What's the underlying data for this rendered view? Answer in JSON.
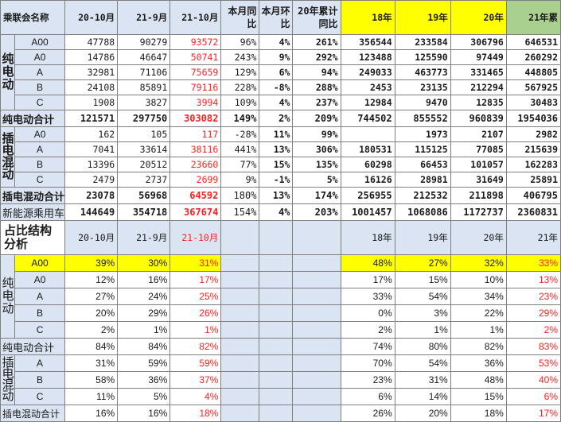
{
  "colors": {
    "yellow": "#ffff00",
    "green": "#a9d08e",
    "red": "#ff2020",
    "blue_bg": "#dbe4f2"
  },
  "header": {
    "name_label": "乘联会名称",
    "c1": "20-10月",
    "c2": "21-9月",
    "c3": "21-10月",
    "c4": "本月同比",
    "c5": "本月环比",
    "c6": "20年累计同比",
    "c7": "18年",
    "c8": "19年",
    "c9": "20年",
    "c10": "21年累"
  },
  "groups": {
    "bev": "纯电动",
    "phev": "插电混动"
  },
  "rows": [
    {
      "cat": "A00",
      "v": [
        "47788",
        "90279",
        "93572",
        "96%",
        "4%",
        "261%",
        "356544",
        "233584",
        "306796",
        "646531"
      ]
    },
    {
      "cat": "A0",
      "v": [
        "14786",
        "46647",
        "50741",
        "243%",
        "9%",
        "292%",
        "123488",
        "125590",
        "97449",
        "260292"
      ]
    },
    {
      "cat": "A",
      "v": [
        "32981",
        "71106",
        "75659",
        "129%",
        "6%",
        "94%",
        "249033",
        "463773",
        "331465",
        "448805"
      ]
    },
    {
      "cat": "B",
      "v": [
        "24108",
        "85891",
        "79116",
        "228%",
        "-8%",
        "288%",
        "2453",
        "23135",
        "212294",
        "567925"
      ]
    },
    {
      "cat": "C",
      "v": [
        "1908",
        "3827",
        "3994",
        "109%",
        "4%",
        "237%",
        "12984",
        "9470",
        "12835",
        "30483"
      ]
    },
    {
      "cat": "纯电动合计",
      "v": [
        "121571",
        "297750",
        "303082",
        "149%",
        "2%",
        "209%",
        "744502",
        "855552",
        "960839",
        "1954036"
      ]
    },
    {
      "cat": "A0",
      "v": [
        "162",
        "105",
        "117",
        "-28%",
        "11%",
        "99%",
        "",
        "1973",
        "2107",
        "2982"
      ]
    },
    {
      "cat": "A",
      "v": [
        "7041",
        "33614",
        "38116",
        "441%",
        "13%",
        "306%",
        "180531",
        "115125",
        "77085",
        "215639"
      ]
    },
    {
      "cat": "B",
      "v": [
        "13396",
        "20512",
        "23660",
        "77%",
        "15%",
        "135%",
        "60298",
        "66453",
        "101057",
        "162283"
      ]
    },
    {
      "cat": "C",
      "v": [
        "2479",
        "2737",
        "2699",
        "9%",
        "-1%",
        "5%",
        "16126",
        "28981",
        "31649",
        "25891"
      ]
    },
    {
      "cat": "插电混动合计",
      "v": [
        "23078",
        "56968",
        "64592",
        "180%",
        "13%",
        "174%",
        "256955",
        "212532",
        "211898",
        "406795"
      ]
    },
    {
      "cat": "新能源乘用车",
      "v": [
        "144649",
        "354718",
        "367674",
        "154%",
        "4%",
        "203%",
        "1001457",
        "1068086",
        "1172737",
        "2360831"
      ]
    }
  ],
  "share_header": {
    "title": "占比结构分析",
    "c1": "20-10月",
    "c2": "21-9月",
    "c3": "21-10月",
    "c7": "18年",
    "c8": "19年",
    "c9": "20年",
    "c10": "21年"
  },
  "share_rows": [
    {
      "cat": "A00",
      "v": [
        "39%",
        "30%",
        "31%",
        "48%",
        "27%",
        "32%",
        "33%"
      ]
    },
    {
      "cat": "A0",
      "v": [
        "12%",
        "16%",
        "17%",
        "17%",
        "15%",
        "10%",
        "13%"
      ]
    },
    {
      "cat": "A",
      "v": [
        "27%",
        "24%",
        "25%",
        "33%",
        "54%",
        "34%",
        "23%"
      ]
    },
    {
      "cat": "B",
      "v": [
        "20%",
        "29%",
        "26%",
        "0%",
        "3%",
        "22%",
        "29%"
      ]
    },
    {
      "cat": "C",
      "v": [
        "2%",
        "1%",
        "1%",
        "2%",
        "1%",
        "1%",
        "2%"
      ]
    },
    {
      "cat": "纯电动合计",
      "v": [
        "84%",
        "84%",
        "82%",
        "74%",
        "80%",
        "82%",
        "83%"
      ]
    },
    {
      "cat": "A",
      "v": [
        "31%",
        "59%",
        "59%",
        "70%",
        "54%",
        "36%",
        "53%"
      ]
    },
    {
      "cat": "B",
      "v": [
        "58%",
        "36%",
        "37%",
        "23%",
        "31%",
        "48%",
        "40%"
      ]
    },
    {
      "cat": "C",
      "v": [
        "11%",
        "5%",
        "4%",
        "6%",
        "14%",
        "15%",
        "6%"
      ]
    },
    {
      "cat": "插电混动合计",
      "v": [
        "16%",
        "16%",
        "18%",
        "26%",
        "20%",
        "18%",
        "17%"
      ]
    }
  ],
  "chart_data": {
    "type": "table",
    "columns": [
      "20-10月",
      "21-9月",
      "21-10月",
      "本月同比",
      "本月环比",
      "20年累计同比",
      "18年",
      "19年",
      "20年",
      "21年累"
    ],
    "series": [
      {
        "name": "A00",
        "values": [
          47788,
          90279,
          93572,
          96,
          4,
          261,
          356544,
          233584,
          306796,
          646531
        ]
      },
      {
        "name": "A0",
        "values": [
          14786,
          46647,
          50741,
          243,
          9,
          292,
          123488,
          125590,
          97449,
          260292
        ]
      },
      {
        "name": "A",
        "values": [
          32981,
          71106,
          75659,
          129,
          6,
          94,
          249033,
          463773,
          331465,
          448805
        ]
      },
      {
        "name": "B",
        "values": [
          24108,
          85891,
          79116,
          228,
          -8,
          288,
          2453,
          23135,
          212294,
          567925
        ]
      },
      {
        "name": "C",
        "values": [
          1908,
          3827,
          3994,
          109,
          4,
          237,
          12984,
          9470,
          12835,
          30483
        ]
      },
      {
        "name": "纯电动合计",
        "values": [
          121571,
          297750,
          303082,
          149,
          2,
          209,
          744502,
          855552,
          960839,
          1954036
        ]
      },
      {
        "name": "插电混动合计",
        "values": [
          23078,
          56968,
          64592,
          180,
          13,
          174,
          256955,
          212532,
          211898,
          406795
        ]
      },
      {
        "name": "新能源乘用车",
        "values": [
          144649,
          354718,
          367674,
          154,
          4,
          203,
          1001457,
          1068086,
          1172737,
          2360831
        ]
      }
    ]
  }
}
